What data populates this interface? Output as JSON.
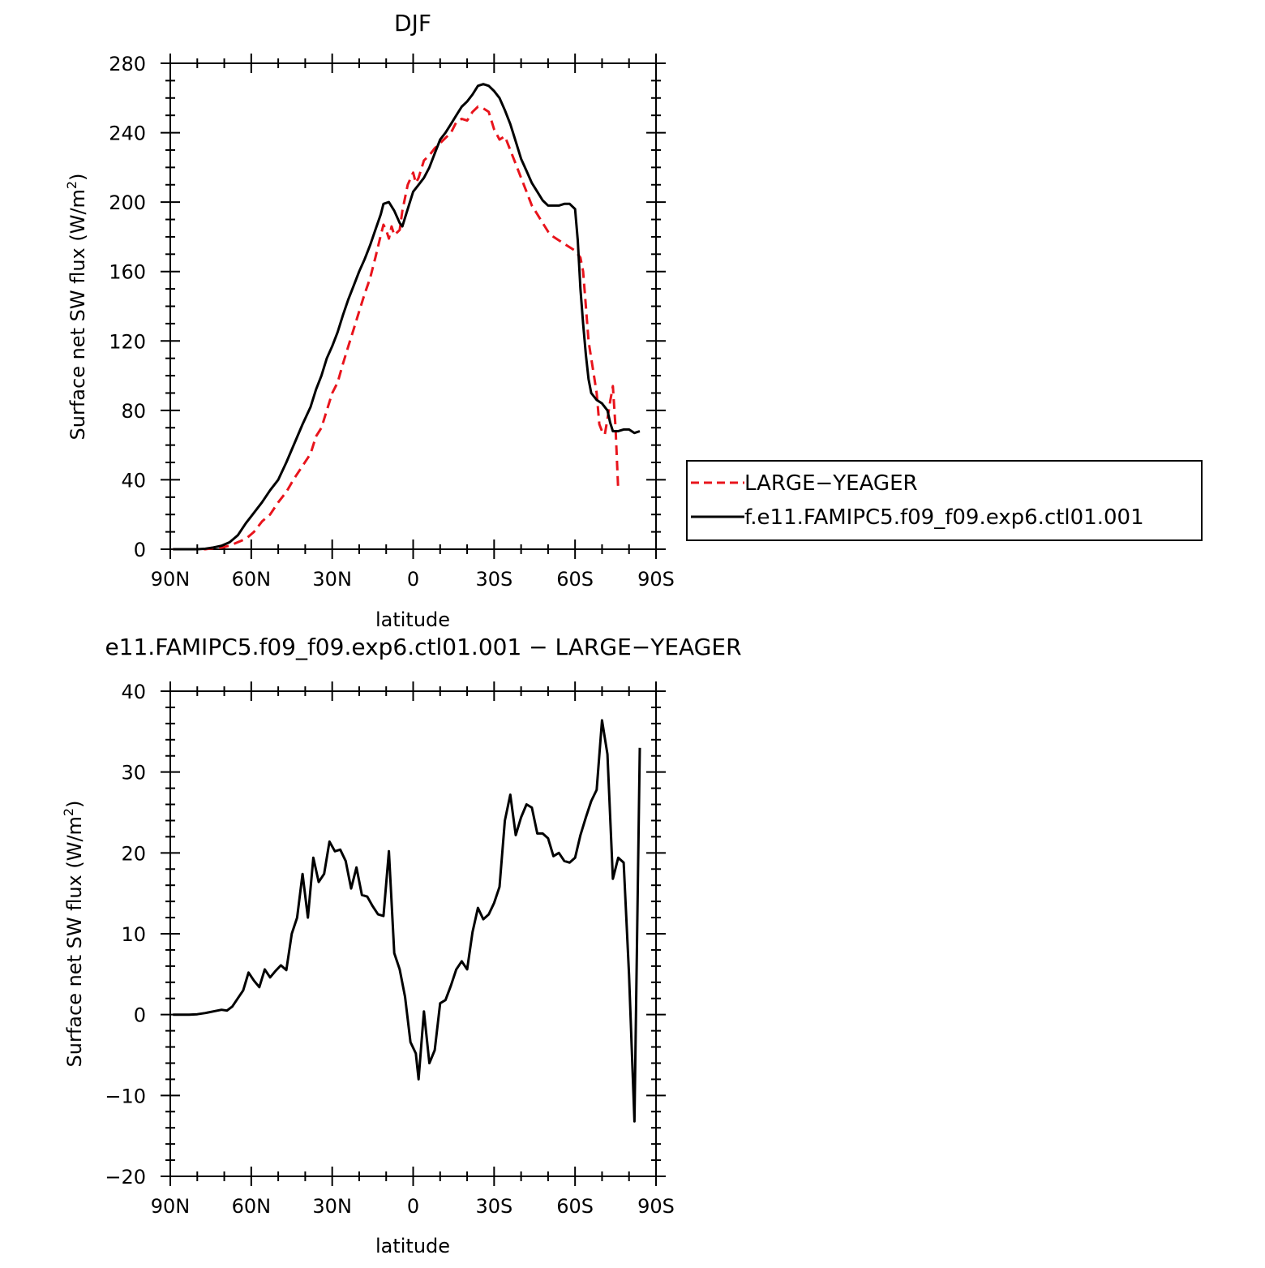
{
  "chart_data": [
    {
      "type": "line",
      "title": "DJF",
      "xlabel": "latitude",
      "ylabel": "Surface net SW flux (W/m²)",
      "xlim": [
        -90,
        90
      ],
      "ylim": [
        0,
        280
      ],
      "x_ticks": [
        {
          "value": -90,
          "label": "90N"
        },
        {
          "value": -60,
          "label": "60N"
        },
        {
          "value": -30,
          "label": "30N"
        },
        {
          "value": 0,
          "label": "0"
        },
        {
          "value": 30,
          "label": "30S"
        },
        {
          "value": 60,
          "label": "60S"
        },
        {
          "value": 90,
          "label": "90S"
        }
      ],
      "y_ticks": [
        {
          "value": 0,
          "label": "0"
        },
        {
          "value": 40,
          "label": "40"
        },
        {
          "value": 80,
          "label": "80"
        },
        {
          "value": 120,
          "label": "120"
        },
        {
          "value": 160,
          "label": "160"
        },
        {
          "value": 200,
          "label": "200"
        },
        {
          "value": 240,
          "label": "240"
        },
        {
          "value": 280,
          "label": "280"
        }
      ],
      "legend_position": "right",
      "series": [
        {
          "name": "LARGE−YEAGER",
          "color": "#e8141c",
          "dash": "dashed",
          "points": [
            [
              -89,
              0
            ],
            [
              -86,
              0
            ],
            [
              -83,
              0
            ],
            [
              -80,
              0
            ],
            [
              -77,
              0
            ],
            [
              -74,
              0.5
            ],
            [
              -71,
              1
            ],
            [
              -68,
              2
            ],
            [
              -65,
              4
            ],
            [
              -62,
              6
            ],
            [
              -59,
              10
            ],
            [
              -56,
              16
            ],
            [
              -53,
              20
            ],
            [
              -50,
              27
            ],
            [
              -47,
              33
            ],
            [
              -44,
              41
            ],
            [
              -41,
              48
            ],
            [
              -38,
              55
            ],
            [
              -36,
              65
            ],
            [
              -34,
              70
            ],
            [
              -32,
              80
            ],
            [
              -30,
              90
            ],
            [
              -28,
              96
            ],
            [
              -26,
              107
            ],
            [
              -24,
              117
            ],
            [
              -22,
              127
            ],
            [
              -20,
              137
            ],
            [
              -18,
              147
            ],
            [
              -16,
              156
            ],
            [
              -14,
              168
            ],
            [
              -12,
              181
            ],
            [
              -11,
              187
            ],
            [
              -10,
              184
            ],
            [
              -9,
              179
            ],
            [
              -8,
              186
            ],
            [
              -7,
              181
            ],
            [
              -5,
              184
            ],
            [
              -4,
              195
            ],
            [
              -2,
              210
            ],
            [
              0,
              217
            ],
            [
              1,
              211
            ],
            [
              2,
              214
            ],
            [
              4,
              224
            ],
            [
              6,
              227
            ],
            [
              8,
              231
            ],
            [
              10,
              234
            ],
            [
              12,
              237
            ],
            [
              14,
              240
            ],
            [
              16,
              246
            ],
            [
              18,
              248
            ],
            [
              20,
              247
            ],
            [
              22,
              252
            ],
            [
              24,
              255
            ],
            [
              26,
              254
            ],
            [
              28,
              252
            ],
            [
              30,
              242
            ],
            [
              32,
              236
            ],
            [
              34,
              238
            ],
            [
              36,
              230
            ],
            [
              38,
              222
            ],
            [
              40,
              214
            ],
            [
              42,
              206
            ],
            [
              44,
              198
            ],
            [
              46,
              193
            ],
            [
              48,
              188
            ],
            [
              50,
              183
            ],
            [
              52,
              180
            ],
            [
              54,
              178
            ],
            [
              56,
              176
            ],
            [
              58,
              174
            ],
            [
              60,
              172
            ],
            [
              62,
              168
            ],
            [
              63,
              160
            ],
            [
              64,
              140
            ],
            [
              65,
              120
            ],
            [
              66,
              110
            ],
            [
              67,
              100
            ],
            [
              68,
              90
            ],
            [
              69,
              72
            ],
            [
              70,
              68
            ],
            [
              71,
              66
            ],
            [
              72,
              75
            ],
            [
              73,
              85
            ],
            [
              74,
              94
            ],
            [
              75,
              70
            ],
            [
              76,
              34
            ]
          ]
        },
        {
          "name": "f.e11.FAMIPC5.f09_f09.exp6.ctl01.001",
          "color": "#000000",
          "dash": "solid",
          "points": [
            [
              -89,
              0
            ],
            [
              -86,
              0
            ],
            [
              -83,
              0
            ],
            [
              -80,
              0
            ],
            [
              -77,
              0.3
            ],
            [
              -74,
              1
            ],
            [
              -71,
              2
            ],
            [
              -68,
              4
            ],
            [
              -65,
              8
            ],
            [
              -62,
              15
            ],
            [
              -59,
              21
            ],
            [
              -56,
              27
            ],
            [
              -53,
              34
            ],
            [
              -50,
              40
            ],
            [
              -47,
              50
            ],
            [
              -44,
              61
            ],
            [
              -41,
              72
            ],
            [
              -38,
              82
            ],
            [
              -36,
              92
            ],
            [
              -34,
              100
            ],
            [
              -32,
              110
            ],
            [
              -30,
              117
            ],
            [
              -28,
              125
            ],
            [
              -26,
              135
            ],
            [
              -24,
              144
            ],
            [
              -22,
              152
            ],
            [
              -20,
              160
            ],
            [
              -18,
              167
            ],
            [
              -16,
              175
            ],
            [
              -14,
              184
            ],
            [
              -12,
              193
            ],
            [
              -11,
              199
            ],
            [
              -9,
              200
            ],
            [
              -7,
              195
            ],
            [
              -5,
              188
            ],
            [
              -4,
              186
            ],
            [
              -2,
              196
            ],
            [
              0,
              206
            ],
            [
              2,
              210
            ],
            [
              4,
              214
            ],
            [
              6,
              220
            ],
            [
              8,
              228
            ],
            [
              10,
              236
            ],
            [
              12,
              240
            ],
            [
              14,
              245
            ],
            [
              16,
              250
            ],
            [
              18,
              255
            ],
            [
              20,
              258
            ],
            [
              22,
              262
            ],
            [
              24,
              267
            ],
            [
              26,
              268
            ],
            [
              28,
              267
            ],
            [
              30,
              264
            ],
            [
              32,
              260
            ],
            [
              34,
              253
            ],
            [
              36,
              245
            ],
            [
              38,
              235
            ],
            [
              40,
              225
            ],
            [
              42,
              218
            ],
            [
              44,
              211
            ],
            [
              46,
              206
            ],
            [
              48,
              201
            ],
            [
              50,
              198
            ],
            [
              52,
              198
            ],
            [
              54,
              198
            ],
            [
              56,
              199
            ],
            [
              58,
              199
            ],
            [
              60,
              196
            ],
            [
              61,
              178
            ],
            [
              62,
              150
            ],
            [
              63,
              130
            ],
            [
              64,
              112
            ],
            [
              65,
              98
            ],
            [
              66,
              90
            ],
            [
              68,
              86
            ],
            [
              70,
              84
            ],
            [
              72,
              80
            ],
            [
              73,
              73
            ],
            [
              74,
              68
            ],
            [
              76,
              68
            ],
            [
              78,
              69
            ],
            [
              80,
              69
            ],
            [
              82,
              67
            ],
            [
              84,
              68
            ]
          ]
        }
      ]
    },
    {
      "type": "line",
      "title": "e11.FAMIPC5.f09_f09.exp6.ctl01.001 − LARGE−YEAGER",
      "xlabel": "latitude",
      "ylabel": "Surface net SW flux (W/m²)",
      "xlim": [
        -90,
        90
      ],
      "ylim": [
        -20,
        40
      ],
      "x_ticks": [
        {
          "value": -90,
          "label": "90N"
        },
        {
          "value": -60,
          "label": "60N"
        },
        {
          "value": -30,
          "label": "30N"
        },
        {
          "value": 0,
          "label": "0"
        },
        {
          "value": 30,
          "label": "30S"
        },
        {
          "value": 60,
          "label": "60S"
        },
        {
          "value": 90,
          "label": "90S"
        }
      ],
      "y_ticks": [
        {
          "value": -20,
          "label": "−20"
        },
        {
          "value": -10,
          "label": "−10"
        },
        {
          "value": 0,
          "label": "0"
        },
        {
          "value": 10,
          "label": "10"
        },
        {
          "value": 20,
          "label": "20"
        },
        {
          "value": 30,
          "label": "30"
        },
        {
          "value": 40,
          "label": "40"
        }
      ],
      "series": [
        {
          "color": "#000000",
          "dash": "solid",
          "points": [
            [
              -89,
              0
            ],
            [
              -86,
              0
            ],
            [
              -83,
              0
            ],
            [
              -80,
              0.05
            ],
            [
              -77,
              0.2
            ],
            [
              -74,
              0.4
            ],
            [
              -71,
              0.6
            ],
            [
              -69,
              0.5
            ],
            [
              -67,
              1.0
            ],
            [
              -65,
              2.0
            ],
            [
              -63,
              3.0
            ],
            [
              -61,
              5.2
            ],
            [
              -59,
              4.2
            ],
            [
              -57,
              3.4
            ],
            [
              -55,
              5.6
            ],
            [
              -53,
              4.6
            ],
            [
              -51,
              5.4
            ],
            [
              -49,
              6.1
            ],
            [
              -47,
              5.5
            ],
            [
              -45,
              10
            ],
            [
              -43,
              12
            ],
            [
              -41,
              17.4
            ],
            [
              -39,
              12
            ],
            [
              -37,
              19.4
            ],
            [
              -35,
              16.4
            ],
            [
              -33,
              17.4
            ],
            [
              -31,
              21.4
            ],
            [
              -29,
              20.2
            ],
            [
              -27,
              20.4
            ],
            [
              -25,
              19
            ],
            [
              -23,
              15.6
            ],
            [
              -21,
              18.2
            ],
            [
              -19,
              14.8
            ],
            [
              -17,
              14.6
            ],
            [
              -15,
              13.4
            ],
            [
              -13,
              12.4
            ],
            [
              -11,
              12.2
            ],
            [
              -9,
              20.2
            ],
            [
              -7,
              7.6
            ],
            [
              -5,
              5.6
            ],
            [
              -3,
              2.2
            ],
            [
              -1,
              -3.4
            ],
            [
              1,
              -4.8
            ],
            [
              2,
              -8.0
            ],
            [
              4,
              0.4
            ],
            [
              6,
              -6.0
            ],
            [
              8,
              -4.4
            ],
            [
              10,
              1.4
            ],
            [
              12,
              1.8
            ],
            [
              14,
              3.6
            ],
            [
              16,
              5.6
            ],
            [
              18,
              6.6
            ],
            [
              20,
              5.6
            ],
            [
              22,
              10.2
            ],
            [
              24,
              13.2
            ],
            [
              26,
              11.8
            ],
            [
              28,
              12.4
            ],
            [
              30,
              13.8
            ],
            [
              32,
              15.8
            ],
            [
              34,
              24.0
            ],
            [
              36,
              27.2
            ],
            [
              38,
              22.2
            ],
            [
              40,
              24.4
            ],
            [
              42,
              26.0
            ],
            [
              44,
              25.6
            ],
            [
              46,
              22.4
            ],
            [
              48,
              22.4
            ],
            [
              50,
              21.8
            ],
            [
              52,
              19.6
            ],
            [
              54,
              20.0
            ],
            [
              56,
              19.0
            ],
            [
              58,
              18.8
            ],
            [
              60,
              19.4
            ],
            [
              62,
              22.2
            ],
            [
              64,
              24.4
            ],
            [
              66,
              26.4
            ],
            [
              68,
              27.8
            ],
            [
              70,
              36.4
            ],
            [
              72,
              32.2
            ],
            [
              74,
              16.8
            ],
            [
              76,
              19.4
            ],
            [
              78,
              18.8
            ],
            [
              80,
              5.0
            ],
            [
              81,
              -4.0
            ],
            [
              82,
              -13.2
            ],
            [
              84,
              33.0
            ]
          ]
        }
      ]
    }
  ]
}
